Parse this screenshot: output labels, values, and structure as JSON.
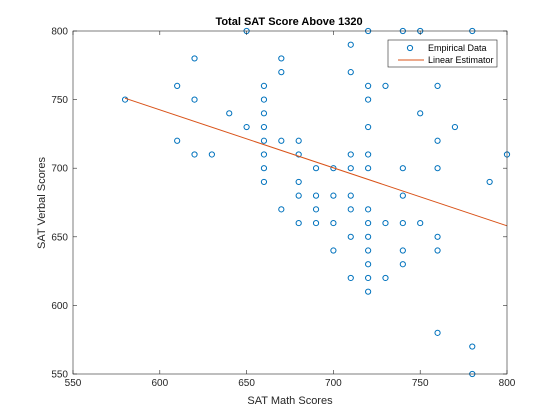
{
  "chart_data": {
    "type": "scatter",
    "title": "Total SAT Score Above 1320",
    "xlabel": "SAT Math Scores",
    "ylabel": "SAT Verbal Scores",
    "xlim": [
      550,
      800
    ],
    "ylim": [
      550,
      800
    ],
    "xticks": [
      550,
      600,
      650,
      700,
      750,
      800
    ],
    "yticks": [
      550,
      600,
      650,
      700,
      750,
      800
    ],
    "legend_position": "top-right",
    "grid": false,
    "series": [
      {
        "name": "Empirical Data",
        "kind": "scatter",
        "color": "#0072BD",
        "points": [
          [
            580,
            750
          ],
          [
            610,
            760
          ],
          [
            610,
            720
          ],
          [
            620,
            780
          ],
          [
            620,
            750
          ],
          [
            620,
            710
          ],
          [
            630,
            710
          ],
          [
            640,
            740
          ],
          [
            650,
            800
          ],
          [
            650,
            730
          ],
          [
            660,
            760
          ],
          [
            660,
            750
          ],
          [
            660,
            740
          ],
          [
            660,
            730
          ],
          [
            660,
            720
          ],
          [
            660,
            710
          ],
          [
            660,
            700
          ],
          [
            660,
            690
          ],
          [
            670,
            780
          ],
          [
            670,
            770
          ],
          [
            670,
            720
          ],
          [
            670,
            670
          ],
          [
            680,
            720
          ],
          [
            680,
            710
          ],
          [
            680,
            690
          ],
          [
            680,
            680
          ],
          [
            680,
            660
          ],
          [
            690,
            700
          ],
          [
            690,
            680
          ],
          [
            690,
            670
          ],
          [
            690,
            660
          ],
          [
            700,
            700
          ],
          [
            700,
            680
          ],
          [
            700,
            660
          ],
          [
            700,
            640
          ],
          [
            710,
            790
          ],
          [
            710,
            770
          ],
          [
            710,
            710
          ],
          [
            710,
            700
          ],
          [
            710,
            680
          ],
          [
            710,
            670
          ],
          [
            710,
            650
          ],
          [
            710,
            620
          ],
          [
            720,
            800
          ],
          [
            720,
            760
          ],
          [
            720,
            750
          ],
          [
            720,
            730
          ],
          [
            720,
            710
          ],
          [
            720,
            700
          ],
          [
            720,
            670
          ],
          [
            720,
            660
          ],
          [
            720,
            650
          ],
          [
            720,
            640
          ],
          [
            720,
            630
          ],
          [
            720,
            620
          ],
          [
            720,
            610
          ],
          [
            730,
            760
          ],
          [
            730,
            660
          ],
          [
            730,
            620
          ],
          [
            740,
            800
          ],
          [
            740,
            700
          ],
          [
            740,
            680
          ],
          [
            740,
            660
          ],
          [
            740,
            640
          ],
          [
            740,
            630
          ],
          [
            750,
            800
          ],
          [
            750,
            740
          ],
          [
            750,
            660
          ],
          [
            760,
            760
          ],
          [
            760,
            720
          ],
          [
            760,
            700
          ],
          [
            760,
            650
          ],
          [
            760,
            640
          ],
          [
            760,
            580
          ],
          [
            770,
            730
          ],
          [
            780,
            800
          ],
          [
            780,
            570
          ],
          [
            780,
            550
          ],
          [
            790,
            690
          ],
          [
            800,
            710
          ]
        ]
      },
      {
        "name": "Linear Estimator",
        "kind": "line",
        "color": "#D95319",
        "x": [
          580,
          800
        ],
        "y": [
          751,
          658
        ]
      }
    ]
  }
}
